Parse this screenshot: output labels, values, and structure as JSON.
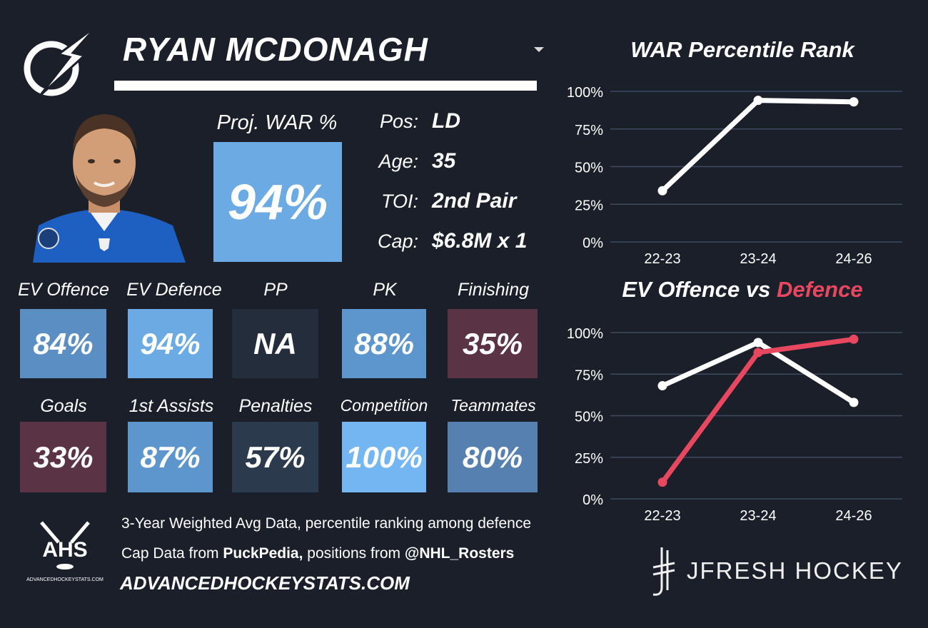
{
  "player": {
    "name": "RYAN MCDONAGH",
    "proj_war_label": "Proj. WAR %",
    "proj_war_value": "94%"
  },
  "info": [
    {
      "label": "Pos:",
      "value": "LD"
    },
    {
      "label": "Age:",
      "value": "35"
    },
    {
      "label": "TOI:",
      "value": "2nd Pair"
    },
    {
      "label": "Cap:",
      "value": "$6.8M x 1"
    }
  ],
  "tiles_row1": [
    {
      "label": "EV Offence",
      "value": "84%",
      "color": "#5b8fc4"
    },
    {
      "label": "EV Defence",
      "value": "94%",
      "color": "#6baae2"
    },
    {
      "label": "PP",
      "value": "NA",
      "color": "#232d3b"
    },
    {
      "label": "PK",
      "value": "88%",
      "color": "#5d96cc"
    },
    {
      "label": "Finishing",
      "value": "35%",
      "color": "#5a3344"
    }
  ],
  "tiles_row2": [
    {
      "label": "Goals",
      "value": "33%",
      "color": "#5a3344"
    },
    {
      "label": "1st Assists",
      "value": "87%",
      "color": "#5d96cc"
    },
    {
      "label": "Penalties",
      "value": "57%",
      "color": "#2c3a4d"
    },
    {
      "label": "Competition",
      "value": "100%",
      "color": "#73b6f1"
    },
    {
      "label": "Teammates",
      "value": "80%",
      "color": "#5580b0"
    }
  ],
  "footer": {
    "line1": "3-Year Weighted Avg Data, percentile ranking among defence",
    "line2_prefix": "Cap Data from ",
    "line2_source1": "PuckPedia,",
    "line2_middle": " positions from ",
    "line2_source2": "@NHL_Rosters",
    "site": "ADVANCEDHOCKEYSTATS.COM",
    "ahs_logo_text": "AHS",
    "ahs_logo_sub": "ADVANCEDHOCKEYSTATS.COM",
    "brand": "JFRESH HOCKEY"
  },
  "colors": {
    "background": "#1b1f2a",
    "offence_line": "#ffffff",
    "defence_line": "#e8485f",
    "gridline": "#3d4a60"
  },
  "chart_data": [
    {
      "type": "line",
      "title": "WAR Percentile Rank",
      "x": [
        "22-23",
        "23-24",
        "24-26"
      ],
      "series": [
        {
          "values": [
            34,
            94,
            93
          ],
          "color": "#ffffff"
        }
      ],
      "ylim": [
        0,
        100
      ],
      "yticks": [
        "0%",
        "25%",
        "50%",
        "75%",
        "100%"
      ],
      "grid": true
    },
    {
      "type": "line",
      "title": "EV Offence vs Defence",
      "title_parts": [
        "EV Offence",
        " vs ",
        "Defence"
      ],
      "x": [
        "22-23",
        "23-24",
        "24-26"
      ],
      "series": [
        {
          "name": "EV Offence",
          "values": [
            68,
            94,
            58
          ],
          "color": "#ffffff"
        },
        {
          "name": "Defence",
          "values": [
            10,
            88,
            96
          ],
          "color": "#e8485f"
        }
      ],
      "ylim": [
        0,
        100
      ],
      "yticks": [
        "0%",
        "25%",
        "50%",
        "75%",
        "100%"
      ],
      "grid": true
    }
  ]
}
